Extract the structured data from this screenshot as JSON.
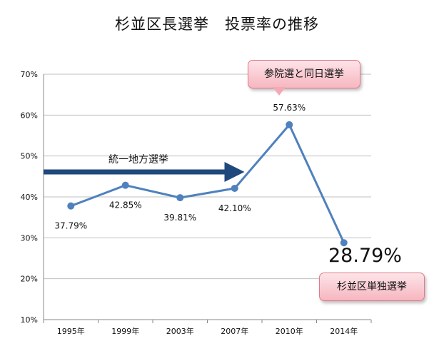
{
  "title": "杉並区長選挙　投票率の推移",
  "callouts": {
    "top": "参院選と同日選挙",
    "bottom": "杉並区単独選挙",
    "big_value": "28.79%",
    "arrow_label": "統一地方選挙"
  },
  "colors": {
    "line": "#4f81bd",
    "arrow_fill": "#1f497d",
    "grid": "#c0c0c0",
    "callout": "#f7b6c0"
  },
  "chart_data": {
    "type": "line",
    "title": "杉並区長選挙　投票率の推移",
    "categories": [
      "1995年",
      "1999年",
      "2003年",
      "2007年",
      "2010年",
      "2014年"
    ],
    "values": [
      37.79,
      42.85,
      39.81,
      42.1,
      57.63,
      28.79
    ],
    "data_labels": [
      "37.79%",
      "42.85%",
      "39.81%",
      "42.10%",
      "57.63%",
      ""
    ],
    "ylim": [
      10,
      70
    ],
    "yticks": [
      "10%",
      "20%",
      "30%",
      "40%",
      "50%",
      "60%",
      "70%"
    ],
    "ytick_values": [
      10,
      20,
      30,
      40,
      50,
      60,
      70
    ],
    "grid": true,
    "legend": "none"
  }
}
